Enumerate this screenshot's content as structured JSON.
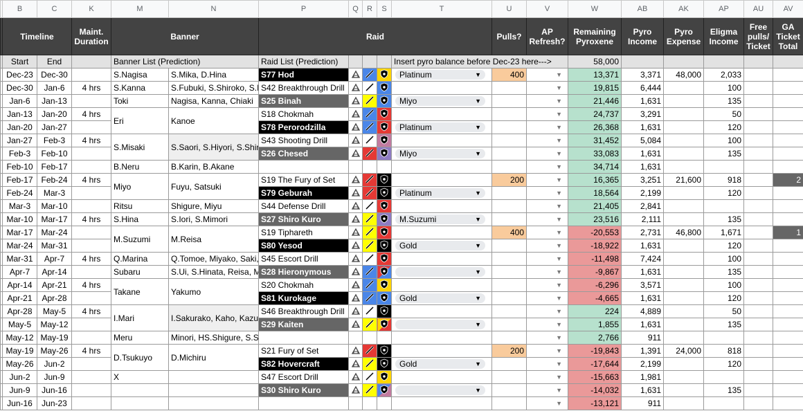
{
  "column_letters": [
    "B",
    "C",
    "K",
    "M",
    "N",
    "P",
    "Q",
    "R",
    "S",
    "T",
    "U",
    "V",
    "W",
    "AB",
    "AK",
    "AP",
    "AU",
    "AV"
  ],
  "headers": {
    "timeline": "Timeline",
    "maintenance": "Maint. Duration",
    "banner": "Banner",
    "raid": "Raid",
    "pulls": "Pulls?",
    "ap_refresh": "AP Refresh?",
    "remaining_pyroxene": "Remaining Pyroxene",
    "pyro_income": "Pyro Income",
    "pyro_expense": "Pyro Expense",
    "eligma_income": "Eligma Income",
    "free_pulls": "Free pulls/ Ticket",
    "ga_ticket_total": "GA Ticket Total"
  },
  "subheader": {
    "start": "Start",
    "end": "End",
    "banner_list": "Banner List (Prediction)",
    "raid_list": "Raid List (Prediction)",
    "balance_prompt": "Insert pyro balance before Dec-23 here--->",
    "starting_balance": "58,000"
  },
  "rows": [
    {
      "start": "Dec-23",
      "end": "Dec-30",
      "banner": "S.Nagisa",
      "banner_units": "S.Mika, D.Hina",
      "raid": "S77 Hod",
      "difficulty": "Platinum",
      "pulls": "400",
      "remaining_pyroxene": "13,371",
      "pyro_income": "3,371",
      "pyro_expense": "48,000",
      "eligma_income": "2,033"
    },
    {
      "start": "Dec-30",
      "end": "Jan-6",
      "maintenance": "4 hrs",
      "banner": "S.Kanna",
      "banner_units": "S.Fubuki, S.Shiroko, S.I",
      "raid": "S42 Breakthrough Drill",
      "remaining_pyroxene": "19,815",
      "pyro_income": "6,444",
      "eligma_income": "100"
    },
    {
      "start": "Jan-6",
      "end": "Jan-13",
      "banner": "Toki",
      "banner_units": "Nagisa, Kanna, Chiaki",
      "raid": "S25 Binah",
      "difficulty": "Miyo",
      "remaining_pyroxene": "21,446",
      "pyro_income": "1,631",
      "eligma_income": "135"
    },
    {
      "start": "Jan-13",
      "end": "Jan-20",
      "maintenance": "4 hrs",
      "banner": "Eri",
      "banner_units": "Kanoe",
      "raid": "S18 Chokmah",
      "remaining_pyroxene": "24,737",
      "pyro_income": "3,291",
      "eligma_income": "50"
    },
    {
      "start": "Jan-20",
      "end": "Jan-27",
      "raid": "S78 Perorodzilla",
      "difficulty": "Platinum",
      "remaining_pyroxene": "26,368",
      "pyro_income": "1,631",
      "eligma_income": "120"
    },
    {
      "start": "Jan-27",
      "end": "Feb-3",
      "maintenance": "4 hrs",
      "banner": "S.Misaki",
      "banner_units": "S.Saori, S.Hiyori, S.Shir",
      "raid": "S43 Shooting Drill",
      "remaining_pyroxene": "31,452",
      "pyro_income": "5,084",
      "eligma_income": "100"
    },
    {
      "start": "Feb-3",
      "end": "Feb-10",
      "raid": "S26 Chesed",
      "difficulty": "Miyo",
      "remaining_pyroxene": "33,083",
      "pyro_income": "1,631",
      "eligma_income": "135"
    },
    {
      "start": "Feb-10",
      "end": "Feb-17",
      "banner": "B.Neru",
      "banner_units": "B.Karin, B.Akane",
      "remaining_pyroxene": "34,714",
      "pyro_income": "1,631"
    },
    {
      "start": "Feb-17",
      "end": "Feb-24",
      "maintenance": "4 hrs",
      "banner": "Miyo",
      "banner_units": "Fuyu, Satsuki",
      "raid": "S19 The Fury of Set",
      "pulls": "200",
      "remaining_pyroxene": "16,365",
      "pyro_income": "3,251",
      "pyro_expense": "21,600",
      "eligma_income": "918",
      "ga_ticket_total": "2"
    },
    {
      "start": "Feb-24",
      "end": "Mar-3",
      "raid": "S79 Geburah",
      "difficulty": "Platinum",
      "remaining_pyroxene": "18,564",
      "pyro_income": "2,199",
      "eligma_income": "120"
    },
    {
      "start": "Mar-3",
      "end": "Mar-10",
      "banner": "Ritsu",
      "banner_units": "Shigure, Miyu",
      "raid": "S44 Defense Drill",
      "remaining_pyroxene": "21,405",
      "pyro_income": "2,841"
    },
    {
      "start": "Mar-10",
      "end": "Mar-17",
      "maintenance": "4 hrs",
      "banner": "S.Hina",
      "banner_units": "S.Iori, S.Mimori",
      "raid": "S27 Shiro Kuro",
      "difficulty": "M.Suzumi",
      "remaining_pyroxene": "23,516",
      "pyro_income": "2,111",
      "eligma_income": "135"
    },
    {
      "start": "Mar-17",
      "end": "Mar-24",
      "banner": "M.Suzumi",
      "banner_units": "M.Reisa",
      "raid": "S19 Tiphareth",
      "pulls": "400",
      "remaining_pyroxene": "-20,553",
      "pyro_income": "2,731",
      "pyro_expense": "46,800",
      "eligma_income": "1,671",
      "ga_ticket_total": "1"
    },
    {
      "start": "Mar-24",
      "end": "Mar-31",
      "raid": "S80 Yesod",
      "difficulty": "Gold",
      "remaining_pyroxene": "-18,922",
      "pyro_income": "1,631",
      "eligma_income": "120"
    },
    {
      "start": "Mar-31",
      "end": "Apr-7",
      "maintenance": "4 hrs",
      "banner": "Q.Marina",
      "banner_units": "Q.Tomoe, Miyako, Saki,",
      "raid": "S45 Escort Drill",
      "remaining_pyroxene": "-11,498",
      "pyro_income": "7,424",
      "eligma_income": "100"
    },
    {
      "start": "Apr-7",
      "end": "Apr-14",
      "banner": "Subaru",
      "banner_units": "S.Ui, S.Hinata, Reisa, M",
      "raid": "S28 Hieronymous",
      "remaining_pyroxene": "-9,867",
      "pyro_income": "1,631",
      "eligma_income": "135"
    },
    {
      "start": "Apr-14",
      "end": "Apr-21",
      "maintenance": "4 hrs",
      "banner": "Takane",
      "banner_units": "Yakumo",
      "raid": "S20 Chokmah",
      "remaining_pyroxene": "-6,296",
      "pyro_income": "3,571",
      "eligma_income": "100"
    },
    {
      "start": "Apr-21",
      "end": "Apr-28",
      "raid": "S81 Kurokage",
      "difficulty": "Gold",
      "remaining_pyroxene": "-4,665",
      "pyro_income": "1,631",
      "eligma_income": "120"
    },
    {
      "start": "Apr-28",
      "end": "May-5",
      "maintenance": "4 hrs",
      "banner": "I.Mari",
      "banner_units": "I.Sakurako, Kaho, Kazu",
      "raid": "S46 Breakthrough Drill",
      "remaining_pyroxene": "224",
      "pyro_income": "4,889",
      "eligma_income": "50"
    },
    {
      "start": "May-5",
      "end": "May-12",
      "raid": "S29 Kaiten",
      "remaining_pyroxene": "1,855",
      "pyro_income": "1,631",
      "eligma_income": "135"
    },
    {
      "start": "May-12",
      "end": "May-19",
      "banner": "Meru",
      "banner_units": "Minori, HS.Shigure, S.S",
      "remaining_pyroxene": "2,766",
      "pyro_income": "911"
    },
    {
      "start": "May-19",
      "end": "May-26",
      "maintenance": "4 hrs",
      "banner": "D.Tsukuyo",
      "banner_units": "D.Michiru",
      "raid": "S21 Fury of Set",
      "pulls": "200",
      "remaining_pyroxene": "-19,843",
      "pyro_income": "1,391",
      "pyro_expense": "24,000",
      "eligma_income": "818"
    },
    {
      "start": "May-26",
      "end": "Jun-2",
      "raid": "S82 Hovercraft",
      "difficulty": "Gold",
      "remaining_pyroxene": "-17,644",
      "pyro_income": "2,199",
      "eligma_income": "120"
    },
    {
      "start": "Jun-2",
      "end": "Jun-9",
      "banner": "X",
      "raid": "S47 Escort Drill",
      "remaining_pyroxene": "-15,663",
      "pyro_income": "1,981"
    },
    {
      "start": "Jun-9",
      "end": "Jun-16",
      "raid": "S30 Shiro Kuro",
      "remaining_pyroxene": "-14,032",
      "pyro_income": "1,631",
      "eligma_income": "135"
    },
    {
      "start": "Jun-16",
      "end": "Jun-23",
      "remaining_pyroxene": "-13,121",
      "pyro_income": "911"
    }
  ]
}
